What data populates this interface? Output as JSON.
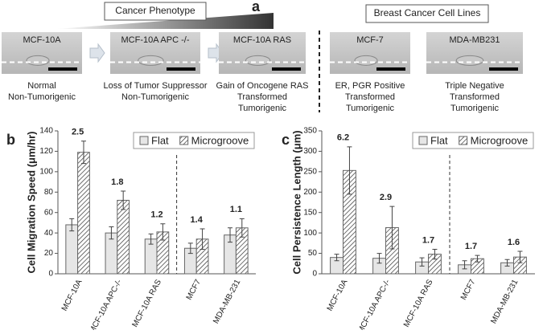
{
  "panel_labels": [
    "a",
    "b",
    "c"
  ],
  "panel_a": {
    "groups": [
      "Cancer Phenotype",
      "Breast Cancer Cell Lines"
    ],
    "cells": [
      {
        "name": "MCF-10A",
        "caption": [
          "Normal",
          "Non-Tumorigenic"
        ]
      },
      {
        "name": "MCF-10A APC -/-",
        "caption": [
          "Loss of Tumor Suppressor",
          "Non-Tumorigenic"
        ]
      },
      {
        "name": "MCF-10A RAS",
        "caption": [
          "Gain of Oncogene RAS",
          "Transformed",
          "Tumorigenic"
        ]
      },
      {
        "name": "MCF-7",
        "caption": [
          "ER, PGR Positive",
          "Transformed",
          "Tumorigenic"
        ]
      },
      {
        "name": "MDA-MB231",
        "caption": [
          "Triple Negative",
          "Transformed",
          "Tumorigenic"
        ]
      }
    ]
  },
  "chart_data": [
    {
      "type": "bar",
      "ylabel": "Cell Migration Speed (μm/hr)",
      "categories": [
        "MCF-10A",
        "MCF-10A APC-/-",
        "MCF-10A RAS",
        "MCF7",
        "MDA-MB-231"
      ],
      "series": [
        {
          "name": "Flat",
          "color": "#e6e6e6",
          "values": [
            48,
            40,
            34,
            25,
            38
          ],
          "errors": [
            6,
            6,
            5,
            5,
            7
          ]
        },
        {
          "name": "Microgroove",
          "color": "#ffffff",
          "hatch": true,
          "values": [
            119,
            72,
            41,
            34,
            45
          ],
          "errors": [
            11,
            9,
            8,
            10,
            9
          ]
        }
      ],
      "annotations": [
        "2.5",
        "1.8",
        "1.2",
        "1.4",
        "1.1"
      ],
      "ylim": [
        0,
        140
      ],
      "yticks": [
        0,
        20,
        40,
        60,
        80,
        100,
        120,
        140
      ],
      "legend": "top-right"
    },
    {
      "type": "bar",
      "ylabel": "Cell Persistence Length (μm)",
      "categories": [
        "MCF-10A",
        "MCF-10A APC-/-",
        "MCF-10A RAS",
        "MCF7",
        "MDA-MB-231"
      ],
      "series": [
        {
          "name": "Flat",
          "color": "#e6e6e6",
          "values": [
            40,
            38,
            29,
            22,
            27
          ],
          "errors": [
            8,
            12,
            10,
            10,
            8
          ]
        },
        {
          "name": "Microgroove",
          "color": "#ffffff",
          "hatch": true,
          "values": [
            253,
            113,
            48,
            37,
            41
          ],
          "errors": [
            58,
            52,
            12,
            8,
            14
          ]
        }
      ],
      "annotations": [
        "6.2",
        "2.9",
        "1.7",
        "1.7",
        "1.6"
      ],
      "ylim": [
        0,
        350
      ],
      "yticks": [
        0,
        50,
        100,
        150,
        200,
        250,
        300,
        350
      ],
      "legend": "top-right"
    }
  ]
}
